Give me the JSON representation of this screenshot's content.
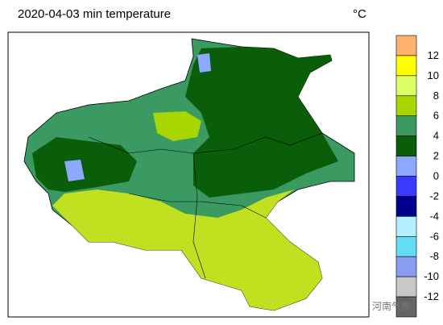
{
  "title": "2020-04-03 min temperature",
  "unit": "°C",
  "colorbar": {
    "labels": [
      12,
      10,
      8,
      6,
      4,
      2,
      0,
      -2,
      -4,
      -6,
      -8,
      -10,
      -12
    ],
    "colors": [
      "#ffb26b",
      "#ffff00",
      "#dcff66",
      "#a8d600",
      "#3a9a62",
      "#0a5e0a",
      "#8ca8ff",
      "#3a3aff",
      "#00008c",
      "#b4f0ff",
      "#64dcf5",
      "#8c9cf0",
      "#c8c8c8",
      "#646464"
    ]
  },
  "watermark": "河南气象"
}
